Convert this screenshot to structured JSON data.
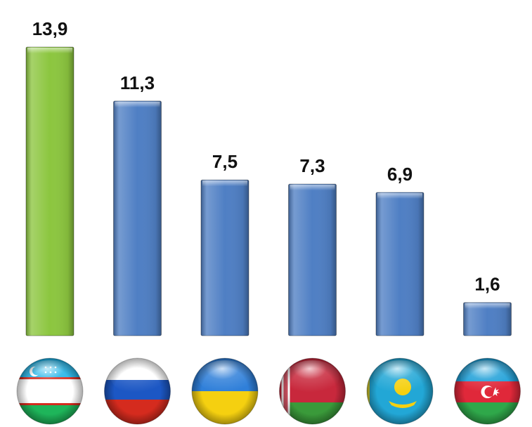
{
  "chart_data": {
    "type": "bar",
    "categories": [
      "Uzbekistan",
      "Russia",
      "Ukraine",
      "Belarus",
      "Kazakhstan",
      "Azerbaijan"
    ],
    "values": [
      13.9,
      11.3,
      7.5,
      7.3,
      6.9,
      1.6
    ],
    "value_labels": [
      "13,9",
      "11,3",
      "7,5",
      "7,3",
      "6,9",
      "1,6"
    ],
    "bar_colors": [
      "#8cc63f",
      "#4f7fc4",
      "#4f7fc4",
      "#4f7fc4",
      "#4f7fc4",
      "#4f7fc4"
    ],
    "category_icons": [
      "uzbekistan-flag-icon",
      "russia-flag-icon",
      "ukraine-flag-icon",
      "belarus-flag-icon",
      "kazakhstan-flag-icon",
      "azerbaijan-flag-icon"
    ],
    "ylim": [
      0,
      13.9
    ],
    "grid": false,
    "legend": "none",
    "title": "",
    "xlabel": "",
    "ylabel": ""
  }
}
